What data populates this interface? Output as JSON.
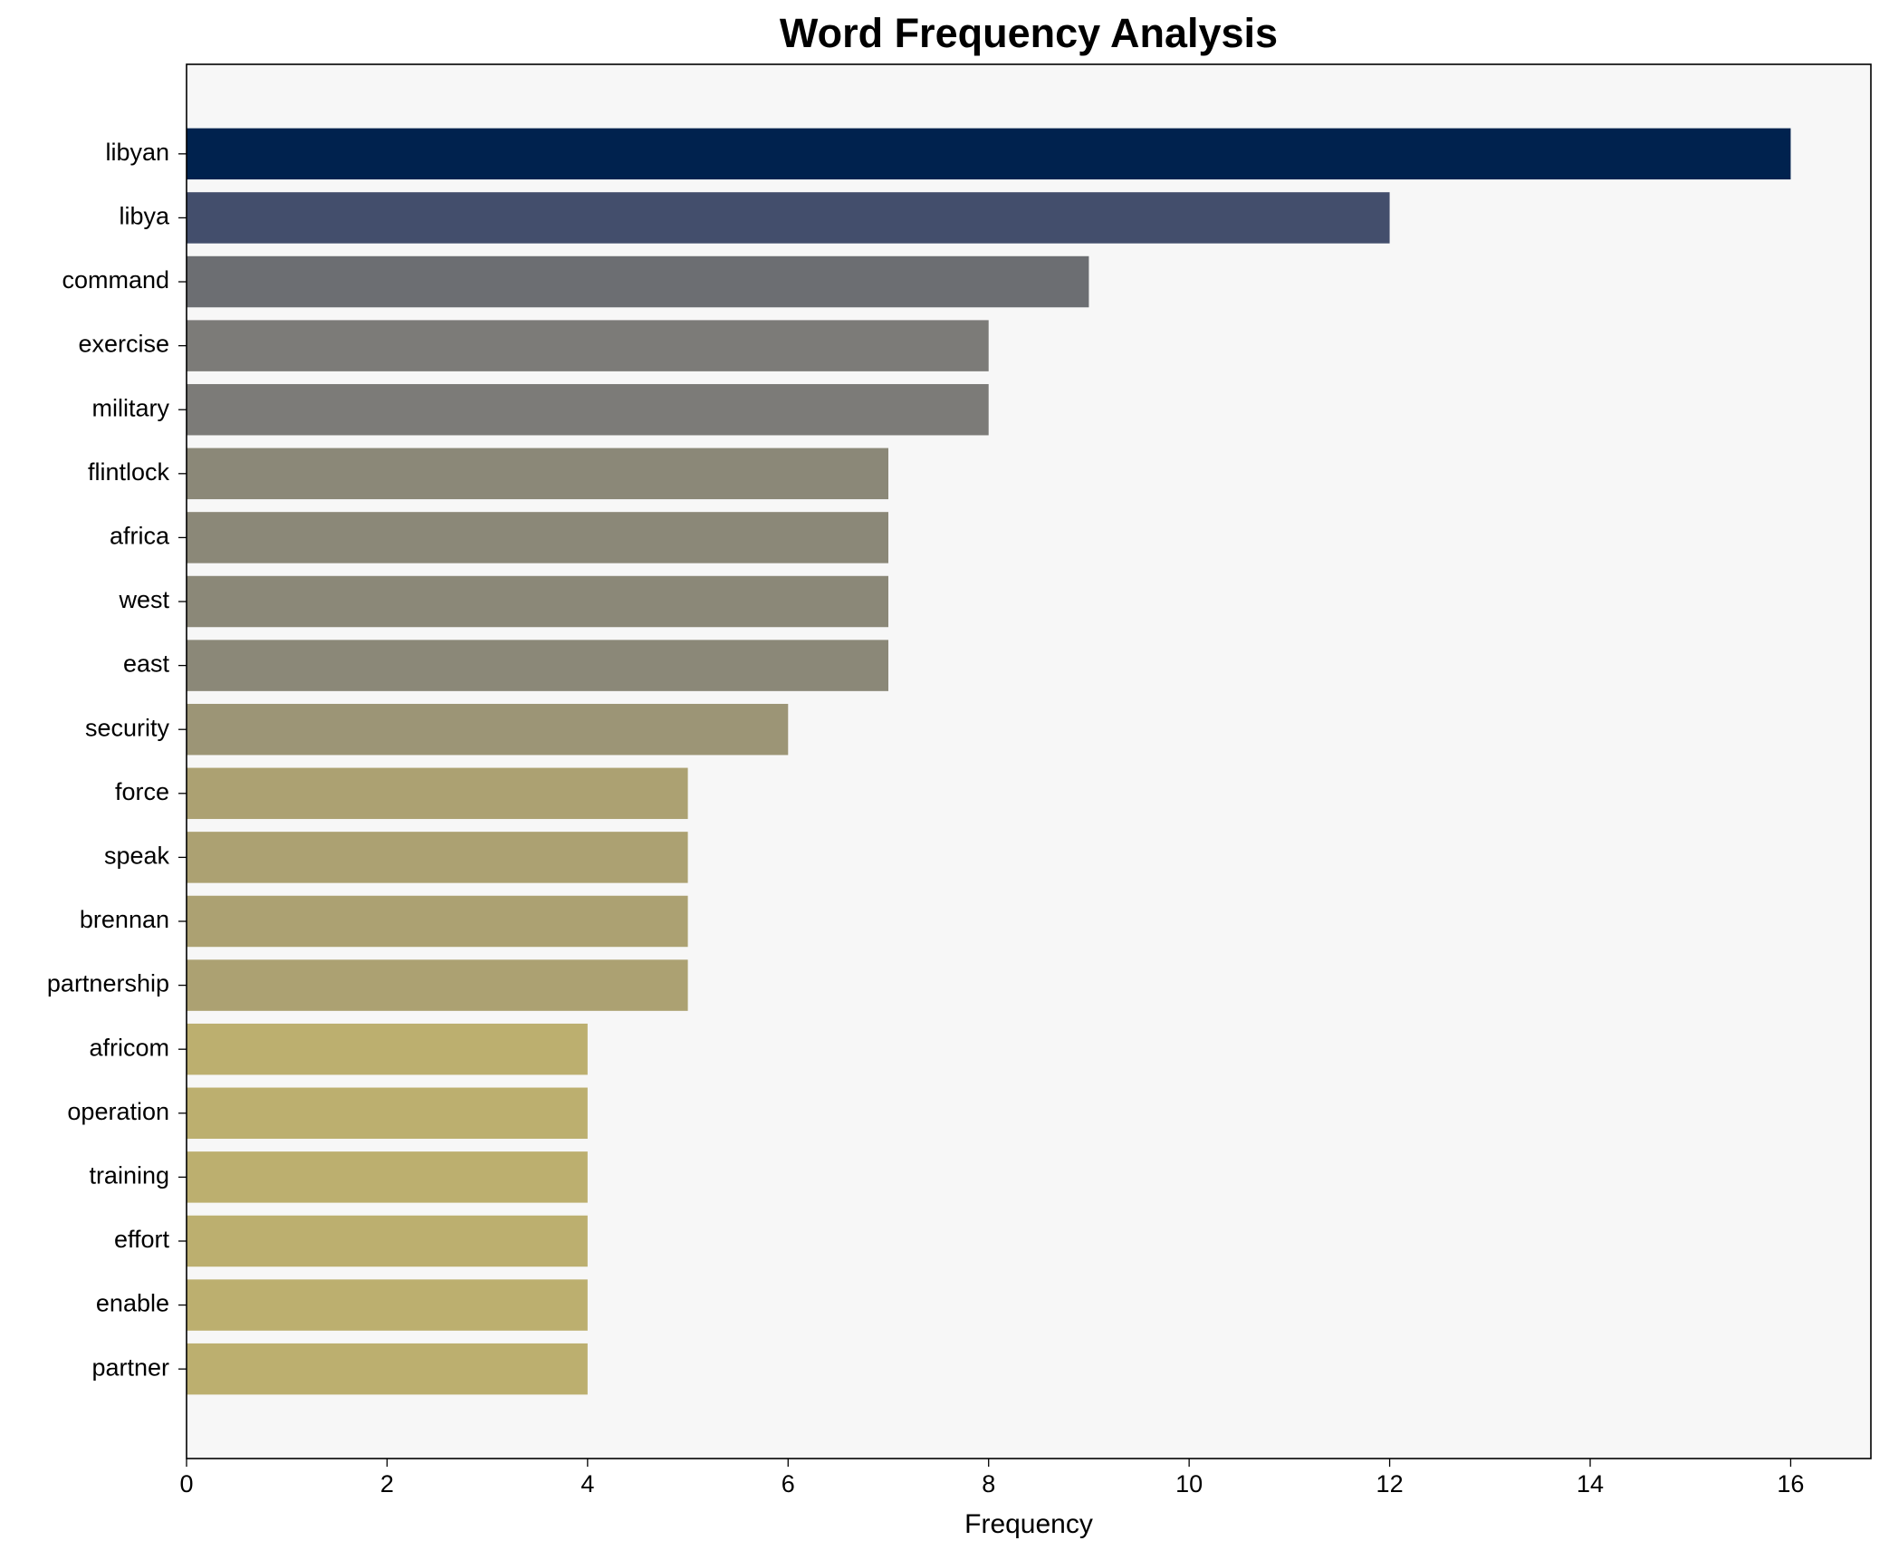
{
  "chart_data": {
    "type": "barh",
    "title": "Word Frequency Analysis",
    "xlabel": "Frequency",
    "categories": [
      "libyan",
      "libya",
      "command",
      "exercise",
      "military",
      "flintlock",
      "africa",
      "west",
      "east",
      "security",
      "force",
      "speak",
      "brennan",
      "partnership",
      "africom",
      "operation",
      "training",
      "effort",
      "enable",
      "partner"
    ],
    "values": [
      16,
      12,
      9,
      8,
      8,
      7,
      7,
      7,
      7,
      6,
      5,
      5,
      5,
      5,
      4,
      4,
      4,
      4,
      4,
      4
    ],
    "colors": [
      "#00224e",
      "#434e6c",
      "#6c6e72",
      "#7c7b78",
      "#7c7b78",
      "#8b8878",
      "#8b8878",
      "#8b8878",
      "#8b8878",
      "#9c9576",
      "#aca172",
      "#aca172",
      "#aca172",
      "#aca172",
      "#bcaf6f",
      "#bcaf6f",
      "#bcaf6f",
      "#bcaf6f",
      "#bcaf6f",
      "#bcaf6f"
    ],
    "xlim": [
      0,
      16.8
    ],
    "xticks": [
      0,
      2,
      4,
      6,
      8,
      10,
      12,
      14,
      16
    ],
    "background": "#f7f7f7"
  }
}
